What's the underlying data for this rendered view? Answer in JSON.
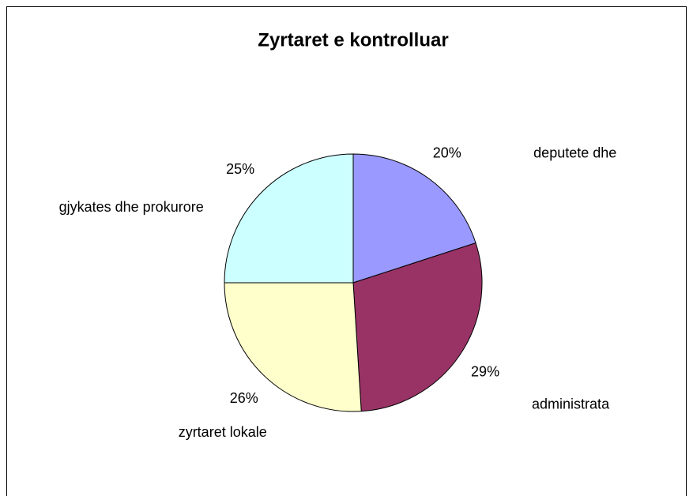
{
  "chart_data": {
    "type": "pie",
    "title": "Zyrtaret e kontrolluar",
    "categories": [
      "deputete dhe",
      "administrata",
      "zyrtaret lokale",
      "gjykates dhe prokurore"
    ],
    "values": [
      20,
      29,
      26,
      25
    ],
    "value_labels": [
      "20%",
      "29%",
      "26%",
      "25%"
    ],
    "colors": [
      "#9999ff",
      "#993366",
      "#ffffcc",
      "#ccffff"
    ]
  }
}
